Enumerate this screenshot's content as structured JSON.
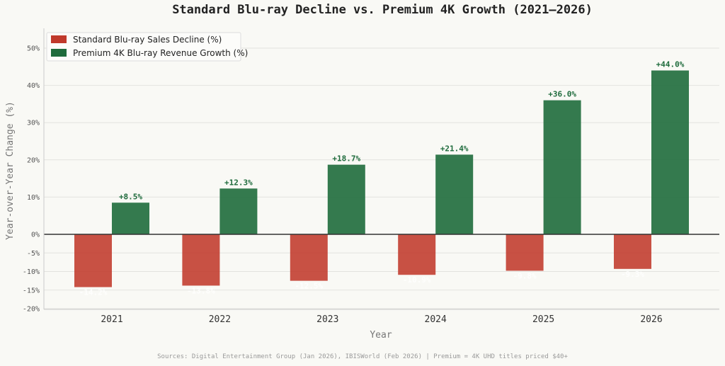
{
  "chart_data": {
    "type": "bar",
    "title": "Standard Blu-ray Decline vs. Premium 4K Growth (2021–2026)",
    "xlabel": "Year",
    "ylabel": "Year-over-Year Change (%)",
    "categories": [
      "2021",
      "2022",
      "2023",
      "2024",
      "2025",
      "2026"
    ],
    "series": [
      {
        "name": "Standard Blu-ray Sales Decline (%)",
        "color": "#c0392b",
        "values": [
          -14.2,
          -13.8,
          -12.5,
          -10.9,
          -9.8,
          -9.3
        ],
        "labels": [
          "-14.2%",
          "-13.8%",
          "-12.5%",
          "-10.9%",
          "-9.8%",
          "-9.3%"
        ]
      },
      {
        "name": "Premium 4K Blu-ray Revenue Growth (%)",
        "color": "#1e6b3c",
        "values": [
          8.5,
          12.3,
          18.7,
          21.4,
          36.0,
          44.0
        ],
        "labels": [
          "+8.5%",
          "+12.3%",
          "+18.7%",
          "+21.4%",
          "+36.0%",
          "+44.0%"
        ]
      }
    ],
    "yticks": [
      {
        "value": 50,
        "label": "50%"
      },
      {
        "value": 40,
        "label": "40%"
      },
      {
        "value": 30,
        "label": "30%"
      },
      {
        "value": 20,
        "label": "20%"
      },
      {
        "value": 10,
        "label": "10%"
      },
      {
        "value": 0,
        "label": "0%"
      },
      {
        "value": -5,
        "label": "-5%"
      },
      {
        "value": -10,
        "label": "-10%"
      },
      {
        "value": -15,
        "label": "-15%"
      },
      {
        "value": -20,
        "label": "-20%"
      }
    ],
    "ylim": [
      -20,
      55
    ],
    "grid": true,
    "legend_position": "top-left",
    "source_note": "Sources: Digital Entertainment Group (Jan 2026), IBISWorld (Feb 2026) | Premium = 4K UHD titles priced $40+"
  }
}
